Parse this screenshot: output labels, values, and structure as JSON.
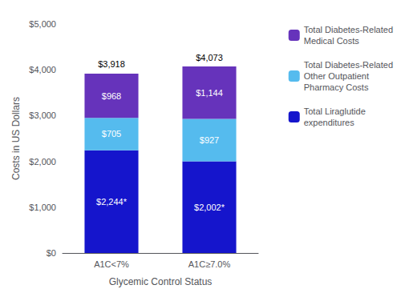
{
  "chart_data": {
    "type": "bar",
    "stacked": true,
    "categories": [
      "A1C<7%",
      "A1C≥7.0%"
    ],
    "xlabel": "Glycemic Control Status",
    "ylabel": "Costs in US Dollars",
    "series": [
      {
        "name": "Total Liraglutide\nexpenditures",
        "color": "#1515CC",
        "values": [
          2244,
          2002
        ],
        "value_labels": [
          "$2,244*",
          "$2,002*"
        ]
      },
      {
        "name": "Total Diabetes-Related\nOther Outpatient\nPharmacy Costs",
        "color": "#55BBEE",
        "values": [
          705,
          927
        ],
        "value_labels": [
          "$705",
          "$927"
        ]
      },
      {
        "name": "Total Diabetes-Related\nMedical Costs",
        "color": "#6633BB",
        "values": [
          968,
          1144
        ],
        "value_labels": [
          "$968",
          "$1,144"
        ]
      }
    ],
    "data_labels": true,
    "total_labels": [
      "$3,918",
      "$4,073"
    ],
    "ylim": [
      0,
      5000
    ],
    "yticks": [
      {
        "value": 0,
        "label": "$0"
      },
      {
        "value": 1000,
        "label": "$1,000"
      },
      {
        "value": 2000,
        "label": "$2,000"
      },
      {
        "value": 3000,
        "label": "$3,000"
      },
      {
        "value": 4000,
        "label": "$4,000"
      },
      {
        "value": 5000,
        "label": "$5,000"
      }
    ],
    "grid": false,
    "legend": "right"
  }
}
